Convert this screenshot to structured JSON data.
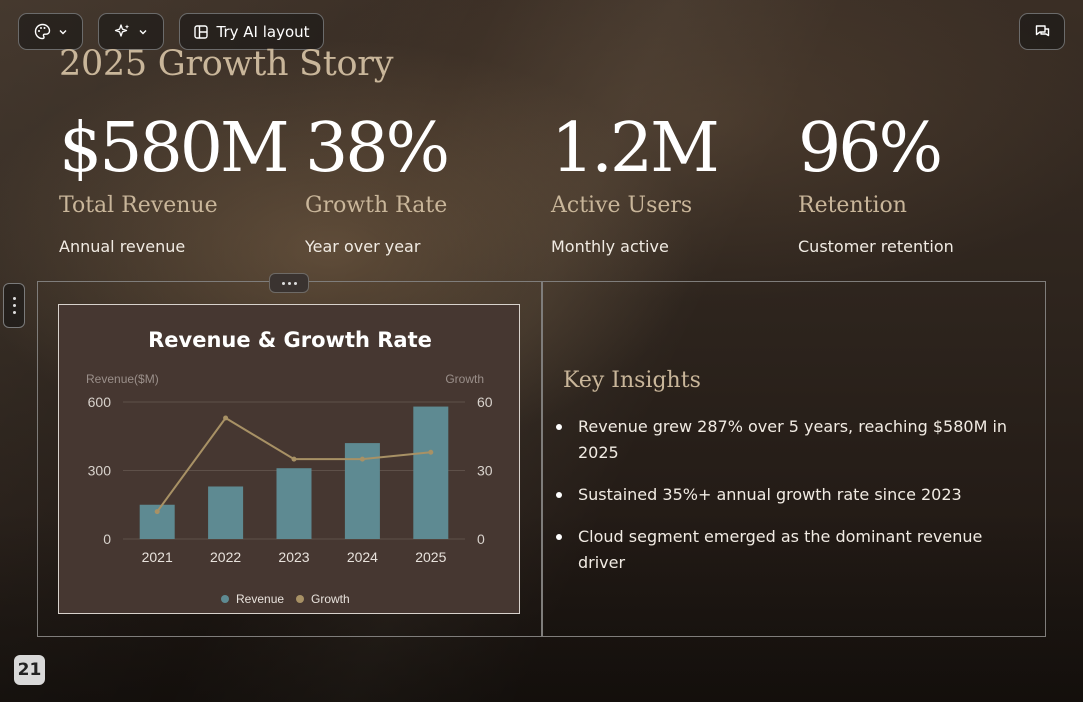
{
  "toolbar": {
    "layout_label": "Try AI layout"
  },
  "slide": {
    "title": "2025 Growth Story",
    "metrics": [
      {
        "value": "$580M",
        "label": "Total Revenue",
        "sub": "Annual revenue"
      },
      {
        "value": "38%",
        "label": "Growth Rate",
        "sub": "Year over year"
      },
      {
        "value": "1.2M",
        "label": "Active Users",
        "sub": "Monthly active"
      },
      {
        "value": "96%",
        "label": "Retention",
        "sub": "Customer retention"
      }
    ],
    "insights_title": "Key Insights",
    "insights": [
      "Revenue grew 287% over 5 years, reaching $580M in 2025",
      "Sustained 35%+ annual growth rate since 2023",
      "Cloud segment emerged as the dominant revenue driver"
    ],
    "page_number": "21"
  },
  "icons": {
    "theme": "palette-icon",
    "ai": "sparkle-icon",
    "layout": "layout-icon",
    "chat": "chat-icon"
  },
  "colors": {
    "accent_text": "#c9b69a",
    "revenue_bar": "#5e8a92",
    "growth_line": "#a89165",
    "chart_bg": "#463731"
  },
  "chart_data": {
    "type": "bar",
    "title": "Revenue & Growth Rate",
    "categories": [
      "2021",
      "2022",
      "2023",
      "2024",
      "2025"
    ],
    "series": [
      {
        "name": "Revenue",
        "type": "bar",
        "axis": "left",
        "values": [
          150,
          230,
          310,
          420,
          580
        ]
      },
      {
        "name": "Growth",
        "type": "line",
        "axis": "right",
        "values": [
          12,
          53,
          35,
          35,
          38
        ]
      }
    ],
    "ylabel_left": "Revenue($M)",
    "ylabel_right": "Growth",
    "ylim_left": [
      0,
      600
    ],
    "ylim_right": [
      0,
      60
    ],
    "yticks_left": [
      "0",
      "300",
      "600"
    ],
    "yticks_right": [
      "0",
      "30",
      "60"
    ],
    "legend_position": "bottom",
    "grid": true
  }
}
